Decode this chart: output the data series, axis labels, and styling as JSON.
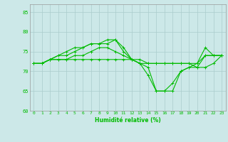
{
  "xlabel": "Humidité relative (%)",
  "background_color": "#cce8e8",
  "grid_color": "#aacccc",
  "line_color": "#00bb00",
  "x": [
    0,
    1,
    2,
    3,
    4,
    5,
    6,
    7,
    8,
    9,
    10,
    11,
    12,
    13,
    14,
    15,
    16,
    17,
    18,
    19,
    20,
    21,
    22,
    23
  ],
  "line1": [
    72,
    72,
    73,
    74,
    75,
    76,
    76,
    77,
    77,
    78,
    78,
    76,
    73,
    72,
    69,
    65,
    65,
    67,
    70,
    71,
    72,
    76,
    74,
    74
  ],
  "line2": [
    72,
    72,
    73,
    74,
    74,
    75,
    76,
    77,
    77,
    77,
    78,
    75,
    73,
    72,
    71,
    65,
    65,
    65,
    70,
    71,
    71,
    74,
    74,
    74
  ],
  "line3": [
    72,
    72,
    73,
    73,
    73,
    74,
    74,
    75,
    76,
    76,
    75,
    74,
    73,
    72,
    72,
    72,
    72,
    72,
    72,
    72,
    72,
    74,
    74,
    74
  ],
  "line4": [
    72,
    72,
    73,
    73,
    73,
    73,
    73,
    73,
    73,
    73,
    73,
    73,
    73,
    73,
    72,
    72,
    72,
    72,
    72,
    72,
    71,
    71,
    72,
    74
  ],
  "ylim": [
    60,
    87
  ],
  "yticks": [
    60,
    65,
    70,
    75,
    80,
    85
  ],
  "xticks": [
    0,
    1,
    2,
    3,
    4,
    5,
    6,
    7,
    8,
    9,
    10,
    11,
    12,
    13,
    14,
    15,
    16,
    17,
    18,
    19,
    20,
    21,
    22,
    23
  ]
}
